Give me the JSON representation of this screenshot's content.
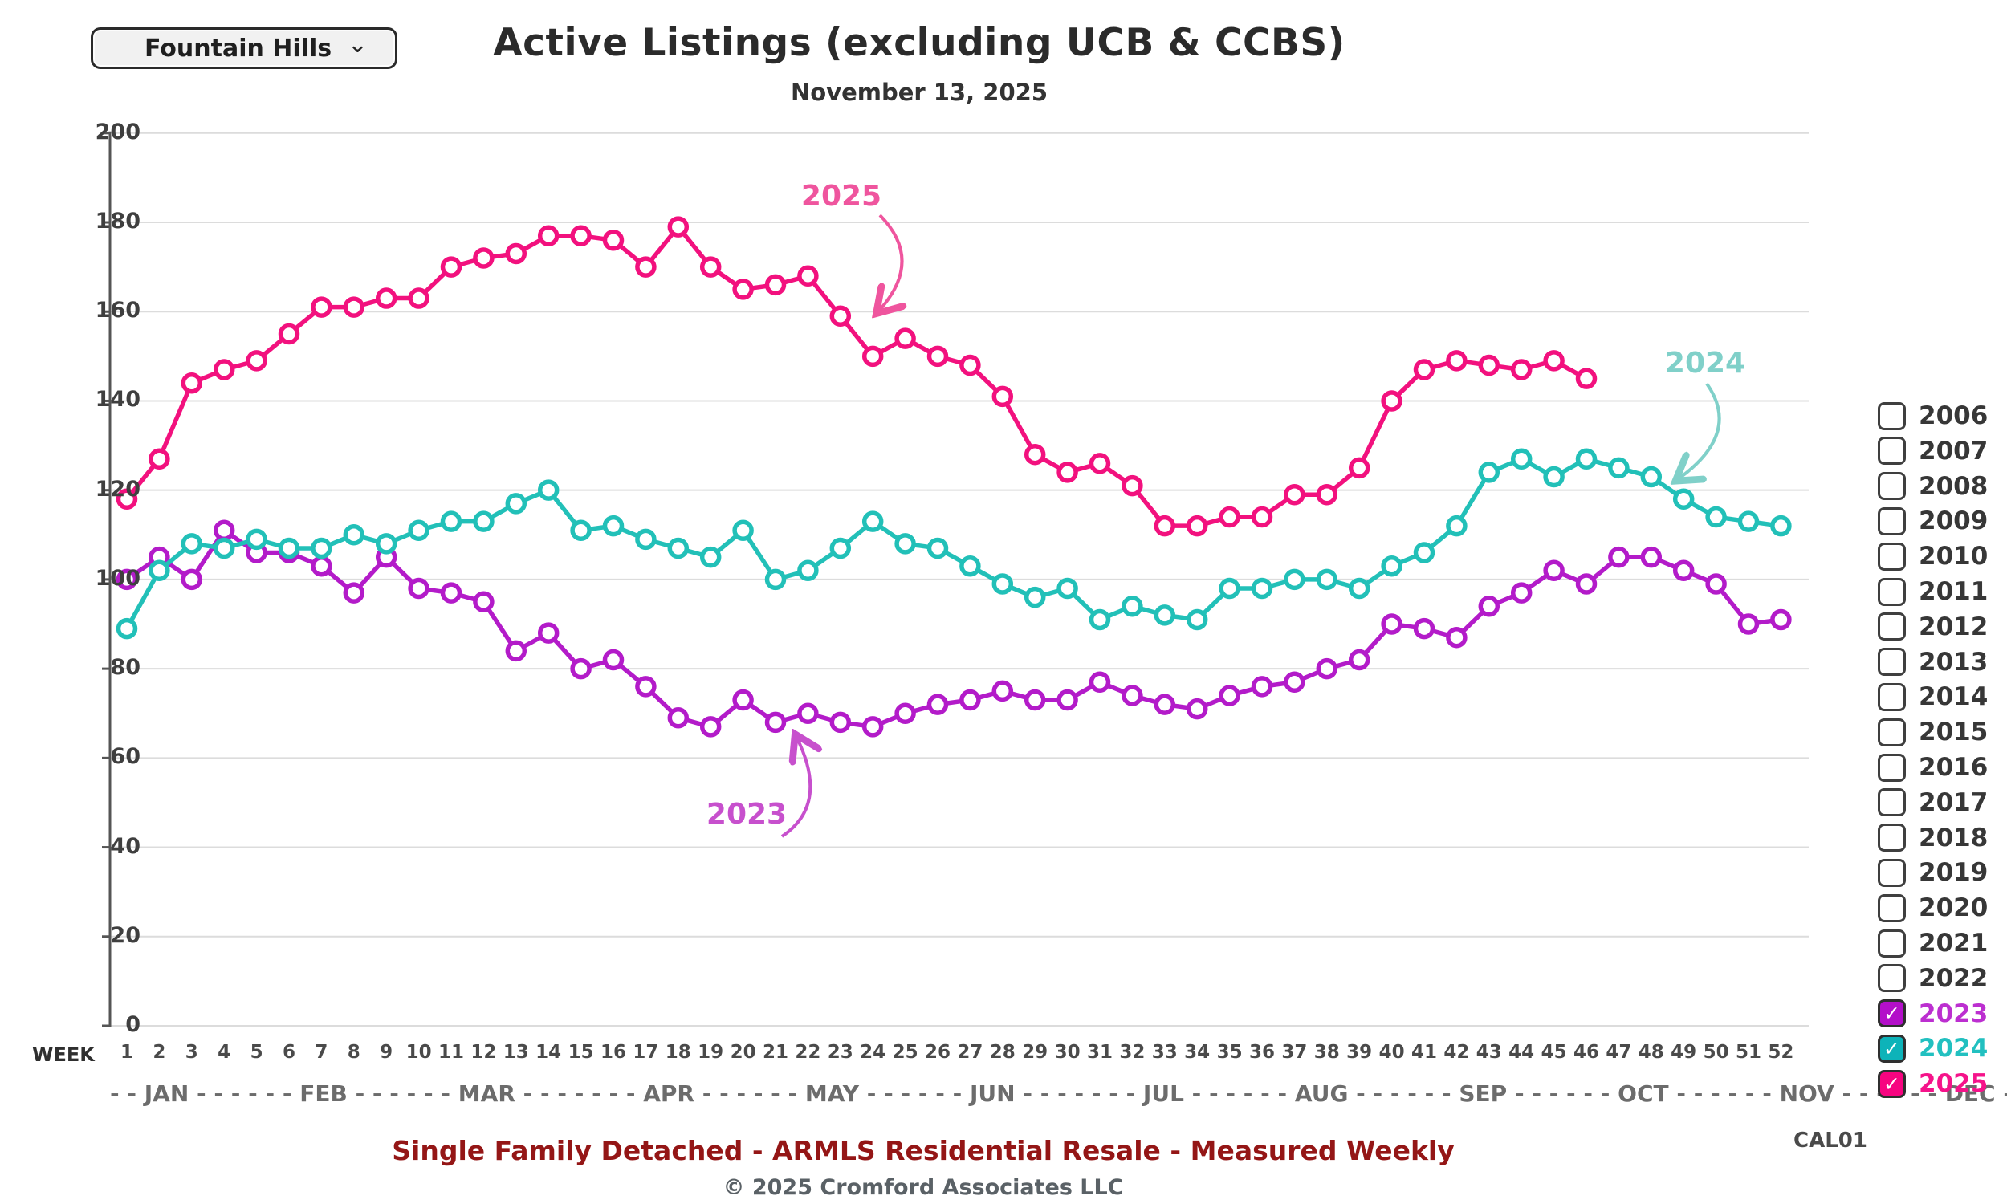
{
  "header": {
    "region_selector": {
      "label": "Fountain Hills",
      "chevron": "⌄"
    },
    "title": "Active Listings (excluding UCB & CCBS)",
    "subtitle": "November 13, 2025"
  },
  "chart_data": {
    "type": "line",
    "title": "Active Listings (excluding UCB & CCBS)",
    "xlabel": "WEEK",
    "weeks": 52,
    "ylim": [
      0,
      200
    ],
    "ytick_step": 20,
    "grid": true,
    "months_line": "- - JAN - - - - - -  FEB - - - - - -  MAR - - - - - - -  APR - - - - - -  MAY - - - - - -  JUN - - - - - - -  JUL - - - - - -  AUG - - - - - -  SEP - - - - - -  OCT - - - - - -  NOV - - - - - -  DEC - - -",
    "series": [
      {
        "name": "2023",
        "color": "#B31BC9",
        "values": [
          100,
          105,
          100,
          111,
          106,
          106,
          103,
          97,
          105,
          98,
          97,
          95,
          84,
          88,
          80,
          82,
          76,
          69,
          67,
          73,
          68,
          70,
          68,
          67,
          70,
          72,
          73,
          75,
          73,
          73,
          77,
          74,
          72,
          71,
          74,
          76,
          77,
          80,
          82,
          90,
          89,
          87,
          94,
          97,
          102,
          99,
          105,
          105,
          102,
          99,
          90,
          91
        ]
      },
      {
        "name": "2024",
        "color": "#22C0B8",
        "values": [
          89,
          102,
          108,
          107,
          109,
          107,
          107,
          110,
          108,
          111,
          113,
          113,
          117,
          120,
          111,
          112,
          109,
          107,
          105,
          111,
          100,
          102,
          107,
          113,
          108,
          107,
          103,
          99,
          96,
          98,
          91,
          94,
          92,
          91,
          98,
          98,
          100,
          100,
          98,
          103,
          106,
          112,
          124,
          127,
          123,
          127,
          125,
          123,
          118,
          114,
          113,
          112
        ]
      },
      {
        "name": "2025",
        "color": "#F2117E",
        "values": [
          118,
          127,
          144,
          147,
          149,
          155,
          161,
          161,
          163,
          163,
          170,
          172,
          173,
          177,
          177,
          176,
          170,
          179,
          170,
          165,
          166,
          168,
          159,
          150,
          154,
          150,
          148,
          141,
          128,
          124,
          126,
          121,
          112,
          112,
          114,
          114,
          119,
          119,
          125,
          140,
          147,
          149,
          148,
          147,
          149,
          145
        ]
      }
    ],
    "annotations": [
      {
        "text": "2025",
        "color": "#EF559E",
        "x": 1048,
        "y": 224
      },
      {
        "text": "2024",
        "color": "#80D0C9",
        "x": 2124,
        "y": 432
      },
      {
        "text": "2023",
        "color": "#C750CD",
        "x": 930,
        "y": 994
      }
    ]
  },
  "legend": {
    "items": [
      {
        "year": "2006",
        "checked": false
      },
      {
        "year": "2007",
        "checked": false
      },
      {
        "year": "2008",
        "checked": false
      },
      {
        "year": "2009",
        "checked": false
      },
      {
        "year": "2010",
        "checked": false
      },
      {
        "year": "2011",
        "checked": false
      },
      {
        "year": "2012",
        "checked": false
      },
      {
        "year": "2013",
        "checked": false
      },
      {
        "year": "2014",
        "checked": false
      },
      {
        "year": "2015",
        "checked": false
      },
      {
        "year": "2016",
        "checked": false
      },
      {
        "year": "2017",
        "checked": false
      },
      {
        "year": "2018",
        "checked": false
      },
      {
        "year": "2019",
        "checked": false
      },
      {
        "year": "2020",
        "checked": false
      },
      {
        "year": "2021",
        "checked": false
      },
      {
        "year": "2022",
        "checked": false
      },
      {
        "year": "2023",
        "checked": true,
        "color": "#B30FC9",
        "label_color": "#BC2FD0"
      },
      {
        "year": "2024",
        "checked": true,
        "color": "#0DB3B9",
        "label_color": "#22C0C0"
      },
      {
        "year": "2025",
        "checked": true,
        "color": "#F70480",
        "label_color": "#F5138A"
      }
    ]
  },
  "footer": {
    "tagline": "Single Family Detached - ARMLS Residential Resale - Measured Weekly",
    "copyright": "© 2025 Cromford Associates LLC",
    "code": "CAL01"
  }
}
